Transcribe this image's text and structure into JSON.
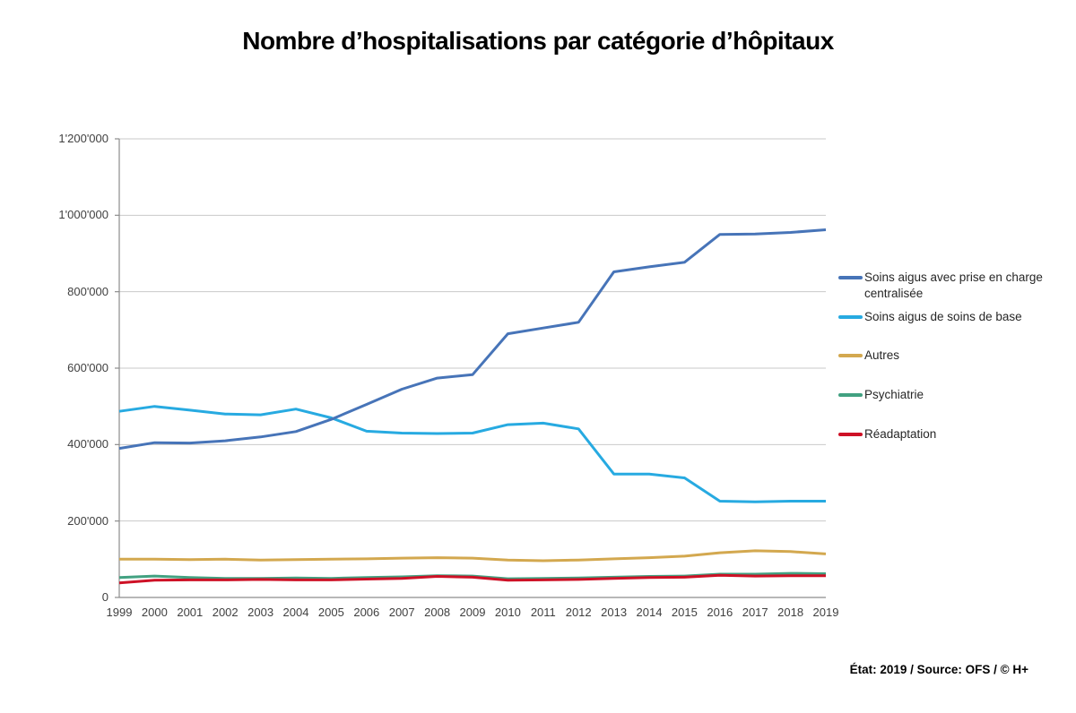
{
  "title": "Nombre d’hospitalisations par catégorie d’hôpitaux",
  "footer": "État: 2019 / Source: OFS / © H+",
  "chart_data": {
    "type": "line",
    "title": "Nombre d’hospitalisations par catégorie d’hôpitaux",
    "xlabel": "",
    "ylabel": "",
    "x": [
      1999,
      2000,
      2001,
      2002,
      2003,
      2004,
      2005,
      2006,
      2007,
      2008,
      2009,
      2010,
      2011,
      2012,
      2013,
      2014,
      2015,
      2016,
      2017,
      2018,
      2019
    ],
    "ylim": [
      0,
      1200000
    ],
    "y_ticks": [
      0,
      200000,
      400000,
      600000,
      800000,
      1000000,
      1200000
    ],
    "y_tick_labels": [
      "0",
      "200'000",
      "400'000",
      "600'000",
      "800'000",
      "1'000'000",
      "1'200'000"
    ],
    "grid": true,
    "legend_position": "right",
    "axis_color": "#8c8c8c",
    "gridline_color": "#c9c9c9",
    "series": [
      {
        "name": "Soins aigus avec prise en charge centralisée",
        "color": "#4774b8",
        "values": [
          390000,
          405000,
          404000,
          410000,
          420000,
          434000,
          466000,
          505000,
          545000,
          574000,
          583000,
          690000,
          705000,
          720000,
          852000,
          865000,
          877000,
          950000,
          951000,
          955000,
          962000
        ]
      },
      {
        "name": "Soins aigus de soins de base",
        "color": "#27aae1",
        "values": [
          487000,
          500000,
          490000,
          480000,
          478000,
          493000,
          470000,
          435000,
          430000,
          429000,
          430000,
          452000,
          456000,
          441000,
          323000,
          323000,
          313000,
          252000,
          250000,
          252000,
          252000
        ]
      },
      {
        "name": "Autres",
        "color": "#d3a84f",
        "values": [
          100000,
          100000,
          99000,
          100000,
          98000,
          99000,
          100000,
          101000,
          103000,
          104000,
          103000,
          98000,
          96000,
          98000,
          101000,
          104000,
          108000,
          117000,
          122000,
          120000,
          114000
        ]
      },
      {
        "name": "Psychiatrie",
        "color": "#42a181",
        "values": [
          52000,
          56000,
          52000,
          50000,
          50000,
          51000,
          50000,
          52000,
          54000,
          57000,
          56000,
          49000,
          50000,
          51000,
          53000,
          55000,
          56000,
          61000,
          61000,
          63000,
          62000
        ]
      },
      {
        "name": "Réadaptation",
        "color": "#ce1126",
        "values": [
          38000,
          45000,
          46000,
          46000,
          47000,
          46000,
          46000,
          48000,
          50000,
          55000,
          53000,
          45000,
          46000,
          47000,
          50000,
          52000,
          53000,
          58000,
          56000,
          57000,
          57000
        ]
      }
    ]
  }
}
